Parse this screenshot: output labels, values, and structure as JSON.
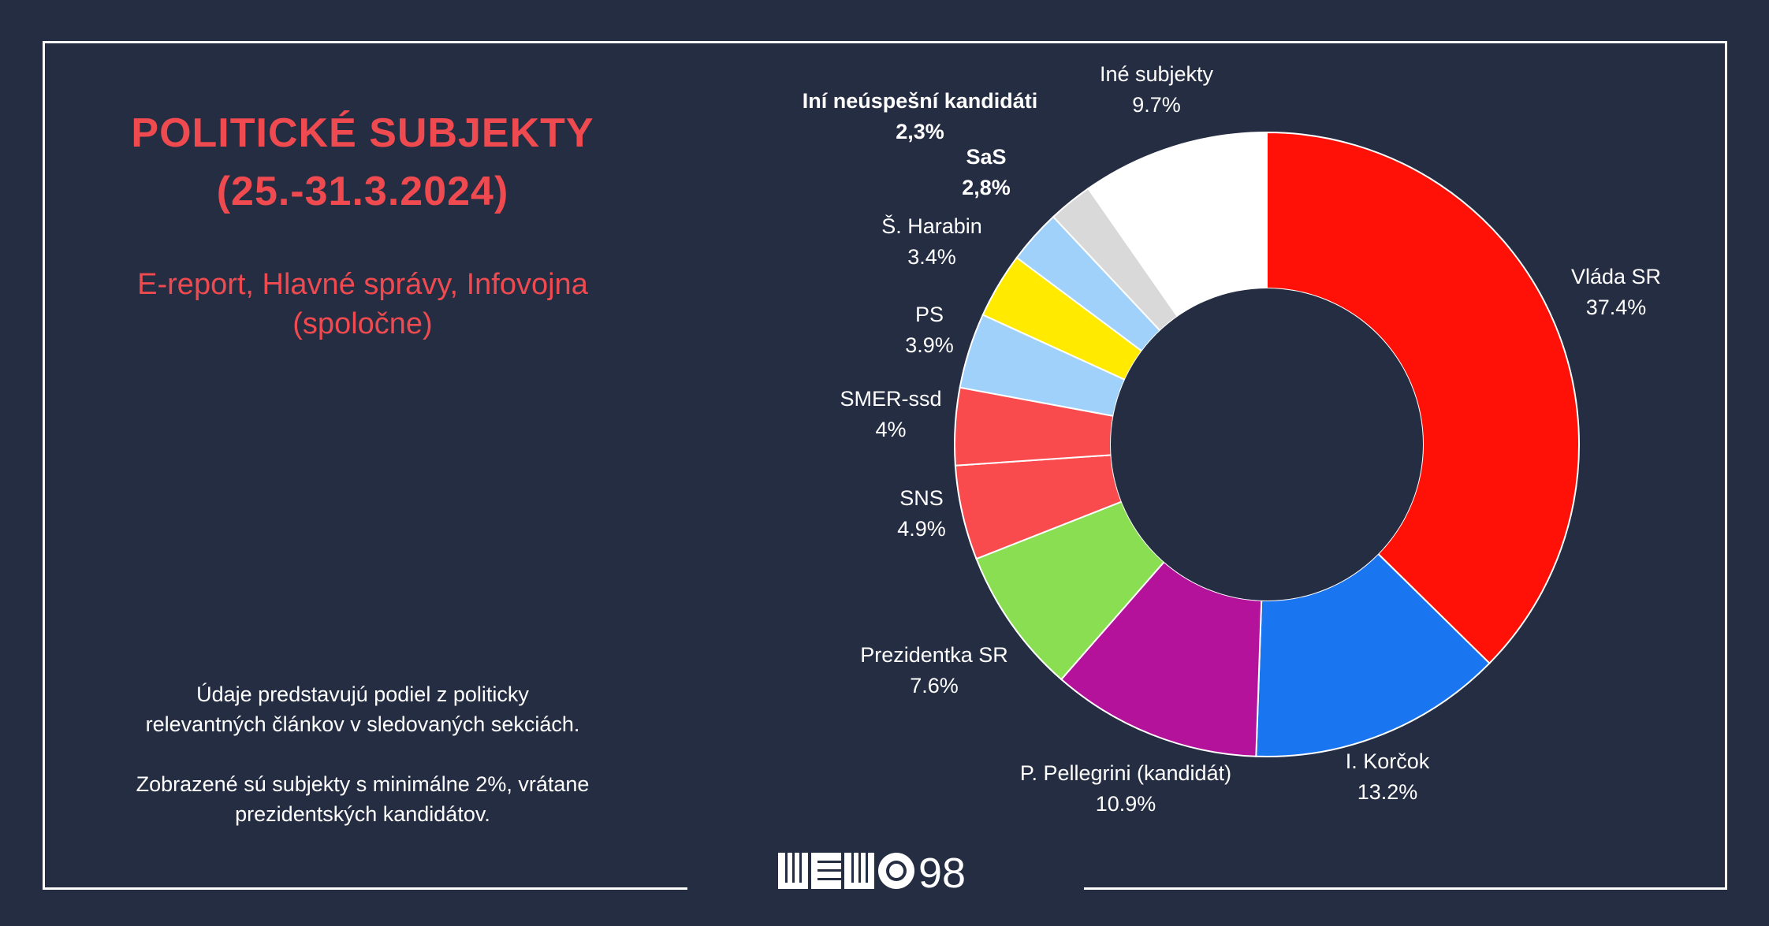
{
  "header": {
    "title_line1": "POLITICKÉ SUBJEKTY",
    "title_line2": "(25.-31.3.2024)",
    "subtitle_line1": "E-report, Hlavné správy, Infovojna",
    "subtitle_line2": "(spoločne)"
  },
  "notes": {
    "line1": "Údaje predstavujú podiel z politicky",
    "line2": "relevantných článkov v sledovaných sekciách.",
    "line3": "Zobrazené sú subjekty s minimálne 2%, vrátane",
    "line4": "prezidentských kandidátov."
  },
  "logo": {
    "text": "98",
    "icon": "memo98-logo-icon"
  },
  "chart_data": {
    "type": "pie",
    "variant": "donut",
    "slices": [
      {
        "label": "Vláda SR",
        "value": 37.4,
        "value_label": "37.4%",
        "color": "#ff1108",
        "bold": false
      },
      {
        "label": "I. Korčok",
        "value": 13.2,
        "value_label": "13.2%",
        "color": "#1a76f0",
        "bold": false
      },
      {
        "label": "P. Pellegrini (kandidát)",
        "value": 10.9,
        "value_label": "10.9%",
        "color": "#b5129c",
        "bold": false
      },
      {
        "label": "Prezidentka SR",
        "value": 7.6,
        "value_label": "7.6%",
        "color": "#8ade52",
        "bold": false
      },
      {
        "label": "SNS",
        "value": 4.9,
        "value_label": "4.9%",
        "color": "#f94a4e",
        "bold": false
      },
      {
        "label": "SMER-ssd",
        "value": 4.0,
        "value_label": "4%",
        "color": "#f94a4e",
        "bold": false
      },
      {
        "label": "PS",
        "value": 3.9,
        "value_label": "3.9%",
        "color": "#9fd1fb",
        "bold": false
      },
      {
        "label": "Š. Harabin",
        "value": 3.4,
        "value_label": "3.4%",
        "color": "#ffea00",
        "bold": false
      },
      {
        "label": "SaS",
        "value": 2.8,
        "value_label": "2,8%",
        "color": "#9fd1fb",
        "bold": true
      },
      {
        "label": "Iní neúspešní kandidáti",
        "value": 2.3,
        "value_label": "2,3%",
        "color": "#d9d9d9",
        "bold": true
      },
      {
        "label": "Iné subjekty",
        "value": 9.7,
        "value_label": "9.7%",
        "color": "#ffffff",
        "bold": false
      }
    ]
  }
}
